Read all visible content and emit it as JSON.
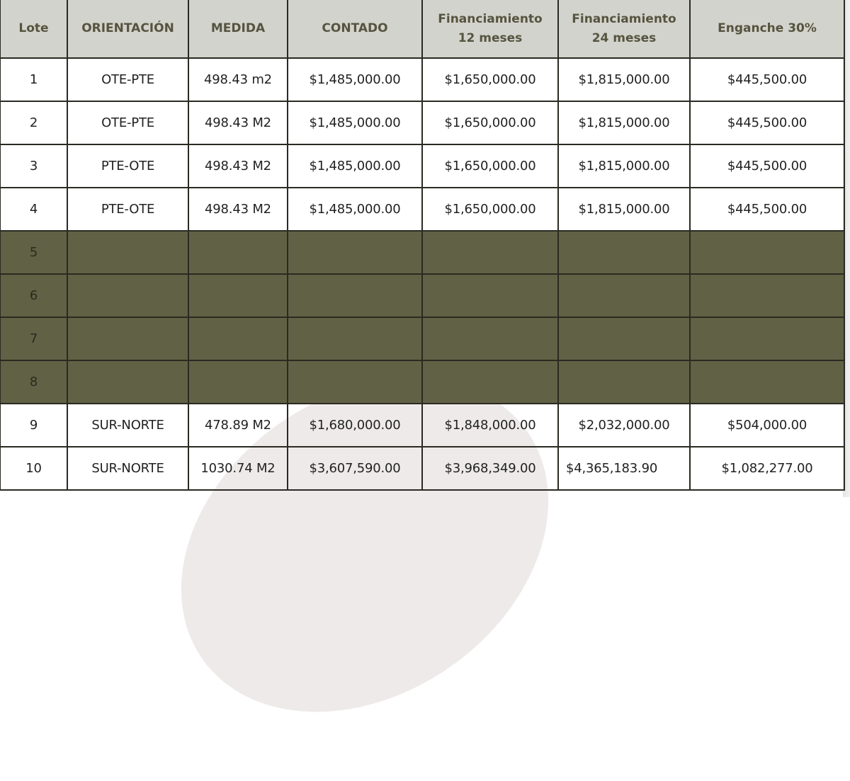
{
  "table": {
    "headers": [
      {
        "line1": "Lote",
        "line2": ""
      },
      {
        "line1": "ORIENTACIÓN",
        "line2": ""
      },
      {
        "line1": "MEDIDA",
        "line2": ""
      },
      {
        "line1": "CONTADO",
        "line2": ""
      },
      {
        "line1": "Financiamiento",
        "line2": "12 meses"
      },
      {
        "line1": "Financiamiento",
        "line2": "24 meses"
      },
      {
        "line1": "Enganche 30%",
        "line2": ""
      }
    ],
    "rows": [
      {
        "lote": "1",
        "orientacion": "OTE-PTE",
        "medida": "498.43 m2",
        "contado": "$1,485,000.00",
        "fin12": "$1,650,000.00",
        "fin24": "$1,815,000.00",
        "enganche": "$445,500.00",
        "status": "available"
      },
      {
        "lote": "2",
        "orientacion": "OTE-PTE",
        "medida": "498.43 M2",
        "contado": "$1,485,000.00",
        "fin12": "$1,650,000.00",
        "fin24": "$1,815,000.00",
        "enganche": "$445,500.00",
        "status": "available"
      },
      {
        "lote": "3",
        "orientacion": "PTE-OTE",
        "medida": "498.43 M2",
        "contado": "$1,485,000.00",
        "fin12": "$1,650,000.00",
        "fin24": "$1,815,000.00",
        "enganche": "$445,500.00",
        "status": "available"
      },
      {
        "lote": "4",
        "orientacion": "PTE-OTE",
        "medida": "498.43 M2",
        "contado": "$1,485,000.00",
        "fin12": "$1,650,000.00",
        "fin24": "$1,815,000.00",
        "enganche": "$445,500.00",
        "status": "available"
      },
      {
        "lote": "5",
        "orientacion": "",
        "medida": "",
        "contado": "",
        "fin12": "",
        "fin24": "",
        "enganche": "",
        "status": "unavailable"
      },
      {
        "lote": "6",
        "orientacion": "",
        "medida": "",
        "contado": "",
        "fin12": "",
        "fin24": "",
        "enganche": "",
        "status": "unavailable"
      },
      {
        "lote": "7",
        "orientacion": "",
        "medida": "",
        "contado": "",
        "fin12": "",
        "fin24": "",
        "enganche": "",
        "status": "unavailable"
      },
      {
        "lote": "8",
        "orientacion": "",
        "medida": "",
        "contado": "",
        "fin12": "",
        "fin24": "",
        "enganche": "",
        "status": "unavailable"
      },
      {
        "lote": "9",
        "orientacion": "SUR-NORTE",
        "medida": "478.89 M2",
        "contado": "$1,680,000.00",
        "fin12": "$1,848,000.00",
        "fin24": "$2,032,000.00",
        "enganche": "$504,000.00",
        "status": "available"
      },
      {
        "lote": "10",
        "orientacion": "SUR-NORTE",
        "medida": "1030.74 M2",
        "contado": "$3,607,590.00",
        "fin12": "$3,968,349.00",
        "fin24": "$4,365,183.90",
        "enganche": "$1,082,277.00",
        "status": "available"
      }
    ]
  },
  "colors": {
    "header_bg": "#d3d3cd",
    "header_text": "#55543f",
    "unavailable_row_bg": "#616245",
    "border": "#2a2a22"
  }
}
